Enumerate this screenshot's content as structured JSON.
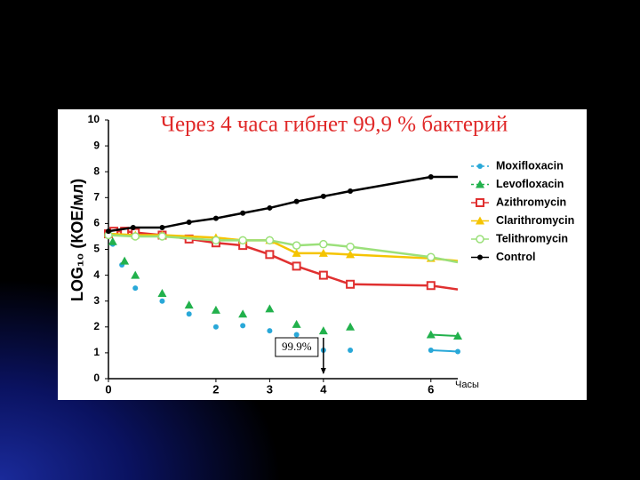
{
  "chart_data": {
    "type": "line",
    "title": "Через 4 часа гибнет 99,9 % бактерий",
    "ylabel": "LOG₁₀ (КОЕ/мл)",
    "xlabel": "Часы",
    "annotation": "99.9%",
    "annotation_x": 4,
    "xlim": [
      0,
      6.5
    ],
    "xticks": [
      0,
      2,
      3,
      4,
      6
    ],
    "ylim": [
      0,
      10
    ],
    "yticks": [
      0,
      1,
      2,
      3,
      4,
      5,
      6,
      7,
      8,
      9,
      10
    ],
    "series": [
      {
        "name": "Moxifloxacin",
        "color": "#29a8d8",
        "marker": "circle",
        "linestyle": "none",
        "x": [
          0.08,
          0.25,
          0.5,
          1,
          1.5,
          2,
          2.5,
          3,
          3.5,
          4,
          4.5,
          6,
          6.5
        ],
        "values": [
          5.2,
          4.4,
          3.5,
          3.0,
          2.5,
          2.0,
          2.05,
          1.85,
          1.7,
          1.1,
          1.1,
          1.1,
          1.05
        ]
      },
      {
        "name": "Levofloxacin",
        "color": "#22b14c",
        "marker": "triangle",
        "linestyle": "none",
        "x": [
          0.08,
          0.3,
          0.5,
          1,
          1.5,
          2,
          2.5,
          3,
          3.5,
          4,
          4.5,
          6,
          6.5
        ],
        "values": [
          5.3,
          4.55,
          4.0,
          3.3,
          2.85,
          2.65,
          2.5,
          2.7,
          2.1,
          1.85,
          2.0,
          1.7,
          1.65
        ]
      },
      {
        "name": "Azithromycin",
        "color": "#e03030",
        "marker": "square",
        "linestyle": "solid",
        "x": [
          0,
          0.1,
          0.3,
          0.5,
          1,
          1.5,
          2,
          2.5,
          3,
          3.5,
          4,
          4.5,
          6,
          6.5
        ],
        "values": [
          5.6,
          5.7,
          5.7,
          5.65,
          5.55,
          5.4,
          5.25,
          5.15,
          4.8,
          4.35,
          4.0,
          3.65,
          3.6,
          3.45
        ]
      },
      {
        "name": "Clarithromycin",
        "color": "#f5c400",
        "marker": "triangle",
        "linestyle": "solid",
        "x": [
          0,
          0.5,
          1,
          2,
          2.5,
          3,
          3.5,
          4,
          4.5,
          6,
          6.5
        ],
        "values": [
          5.6,
          5.55,
          5.55,
          5.45,
          5.35,
          5.35,
          4.85,
          4.85,
          4.8,
          4.65,
          4.55
        ]
      },
      {
        "name": "Telithromycin",
        "color": "#9be07a",
        "marker": "open-circle",
        "linestyle": "solid",
        "x": [
          0,
          0.5,
          1,
          2,
          2.5,
          3,
          3.5,
          4,
          4.5,
          6,
          6.5
        ],
        "values": [
          5.55,
          5.5,
          5.5,
          5.35,
          5.35,
          5.35,
          5.15,
          5.2,
          5.1,
          4.7,
          4.5
        ]
      },
      {
        "name": "Control",
        "color": "#000000",
        "marker": "circle",
        "linestyle": "solid",
        "x": [
          0,
          0.46,
          1,
          1.5,
          2,
          2.5,
          3,
          3.5,
          4,
          4.5,
          6,
          6.5
        ],
        "values": [
          5.7,
          5.84,
          5.84,
          6.05,
          6.2,
          6.4,
          6.6,
          6.85,
          7.05,
          7.25,
          7.8,
          7.8
        ]
      }
    ]
  }
}
